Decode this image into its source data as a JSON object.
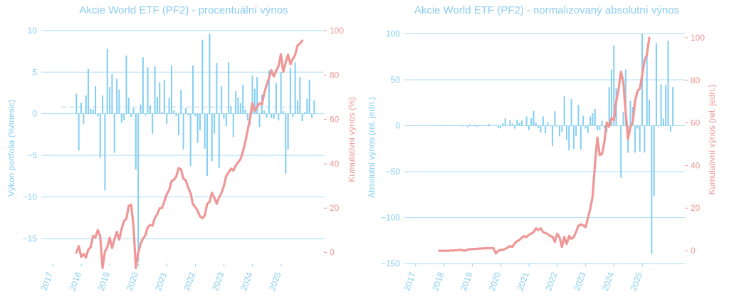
{
  "colors": {
    "bars": "#86cff2",
    "line": "#ef9797",
    "axis_left": "#86cff2",
    "axis_right": "#ef9797",
    "grid": "#aadcf5",
    "dashed": "#d8e9f2"
  },
  "chart_data": [
    {
      "type": "bar",
      "title": "Akcie World ETF (PF2) - procentuální výnos",
      "ylabel": "Výkon portfolia (%/mesic)",
      "ylabel2": "Kumulativní výnos (%)",
      "xlabels": [
        "2017",
        "2018",
        "2019",
        "2020",
        "2021",
        "2022",
        "2023",
        "2024",
        "2025"
      ],
      "yticks": [
        "10",
        "5",
        "0",
        "−5",
        "−10",
        "−15"
      ],
      "y2ticks": [
        "100",
        "80",
        "60",
        "40",
        "20",
        "0"
      ],
      "ylim": [
        -18,
        10.5
      ],
      "y2lim": [
        -5,
        102
      ],
      "xlim": [
        2016.6,
        2026.5
      ],
      "grid": true,
      "mean_line": 0.8,
      "series": [
        {
          "kind": "bar",
          "x_start": 2017.83,
          "x_step": 0.0833,
          "values": [
            2.4,
            -4.4,
            1.3,
            -1.2,
            2.2,
            5.4,
            0.6,
            0.5,
            3.3,
            -0.3,
            -5.3,
            2.2,
            -9.2,
            7.8,
            3.2,
            4.8,
            -4.7,
            4.2,
            2.9,
            -1.1,
            -0.8,
            7.0,
            1.9,
            -0.4,
            0.7,
            -6.7,
            -17.8,
            1.1,
            6.8,
            -0.2,
            5.6,
            1.0,
            -2.4,
            5.7,
            2.0,
            3.8,
            0.2,
            4.1,
            -1.2,
            1.9,
            5.8,
            0.4,
            -0.3,
            -2.6,
            2.9,
            -4.3,
            0.7,
            -0.2,
            -6.3,
            5.8,
            -0.3,
            -3.5,
            -2.0,
            8.9,
            -4.2,
            -7.5,
            9.6,
            -5.7,
            -2.4,
            6.1,
            -6.5,
            3.3,
            -0.6,
            -1.5,
            6.2,
            0.9,
            -2.8,
            2.7,
            2.0,
            1.3,
            3.5,
            0.5,
            -0.8,
            -1.4,
            4.6,
            3.0,
            4.4,
            -1.6,
            2.3,
            0.4,
            -0.5,
            5.2,
            -0.5,
            -0.6,
            3.7,
            -0.8,
            5.0,
            0.3,
            -7.2,
            -4.3,
            5.5,
            -0.4,
            6.2,
            1.6,
            4.4,
            -0.9,
            0.2,
            1.8,
            4.1,
            -0.5,
            1.6
          ]
        },
        {
          "kind": "line",
          "x_start": 2017.83,
          "x_step": 0.0833,
          "values": [
            0.0,
            2.8,
            -2.0,
            -0.7,
            -2.3,
            1.3,
            2.4,
            7.4,
            6.8,
            10.1,
            7.3,
            -7.0,
            0.4,
            2.3,
            6.7,
            2.0,
            5.9,
            9.3,
            5.8,
            10.7,
            14.1,
            15.2,
            21.0,
            21.6,
            12.0,
            -7.0,
            -0.2,
            4.0,
            6.2,
            7.7,
            11.4,
            12.4,
            12.1,
            15.6,
            17.3,
            19.9,
            20.1,
            23.1,
            26.3,
            28.1,
            32.2,
            32.8,
            34.3,
            38.1,
            37.4,
            33.3,
            32.5,
            29.3,
            26.7,
            21.8,
            20.5,
            18.7,
            16.2,
            15.5,
            16.7,
            21.9,
            22.8,
            26.9,
            24.6,
            22.0,
            24.8,
            26.9,
            29.9,
            34.5,
            36.1,
            37.8,
            37.0,
            39.2,
            40.7,
            42.1,
            45.4,
            49.8,
            55.0,
            60.4,
            67.4,
            63.8,
            65.9,
            67.2,
            66.8,
            72.0,
            75.6,
            78.7,
            82.2,
            79.4,
            81.9,
            84.2,
            89.4,
            81.4,
            85.7,
            89.2,
            84.9,
            87.3,
            89.1,
            93.4,
            94.2,
            95.6
          ]
        }
      ]
    },
    {
      "type": "bar",
      "title": "Akcie World ETF (PF2) - normalizovaný absolutní výnos",
      "ylabel": "Absolutní výnos (rel. jedn.)",
      "ylabel2": "Kumulativní výnos (rel. jedn.)",
      "xlabels": [
        "2017",
        "2018",
        "2019",
        "2020",
        "2021",
        "2022",
        "2023",
        "2024",
        "2025"
      ],
      "yticks": [
        "100",
        "50",
        "0",
        "−50",
        "−100",
        "−150"
      ],
      "y2ticks": [
        "100",
        "80",
        "60",
        "40",
        "20",
        "0"
      ],
      "ylim": [
        -150,
        105
      ],
      "y2lim": [
        -6,
        104
      ],
      "xlim": [
        2016.6,
        2026.5
      ],
      "grid": true,
      "series": [
        {
          "kind": "bar",
          "x_start": 2017.83,
          "x_step": 0.0833,
          "values": [
            0.2,
            -0.4,
            0.1,
            -0.1,
            0.2,
            0.6,
            0.1,
            0.1,
            0.4,
            0,
            -0.8,
            0.3,
            -1.6,
            1.2,
            0.6,
            0.9,
            -1.0,
            0.9,
            0.7,
            -0.3,
            -0.2,
            2.1,
            0.6,
            -0.1,
            0.2,
            -2.5,
            -2.9,
            2.6,
            8.3,
            -0.2,
            6.1,
            2.4,
            -3.2,
            6.5,
            2.8,
            5.4,
            0.4,
            9.9,
            -4.7,
            8.3,
            16.1,
            3.4,
            -2.7,
            -7.4,
            10.1,
            -8.3,
            3.3,
            -0.9,
            -22.2,
            15.7,
            -1.4,
            -11.6,
            -6.8,
            32.0,
            -15.7,
            -26.9,
            29.0,
            -25.1,
            -11.4,
            22.6,
            -26.0,
            10.8,
            -3.1,
            -8.0,
            10.0,
            13.6,
            18.4,
            -4.9,
            -4.9,
            5.3,
            -3.0,
            -6.8,
            42.0,
            61.1,
            87.5,
            40.8,
            0.5,
            -56.9,
            15.1,
            61.3,
            -29.5,
            27.0,
            20.4,
            -29.3,
            -3.1,
            -28.1,
            100,
            -29.1,
            78.1,
            28.5,
            -139.6,
            -76.8,
            90.0,
            -1.1,
            45.0,
            7.8,
            44.3,
            92.4,
            -6.4,
            42.1
          ]
        },
        {
          "kind": "line",
          "x_start": 2017.83,
          "x_step": 0.0833,
          "values": [
            0,
            0,
            0,
            0,
            0,
            0.2,
            0.1,
            0.3,
            0.3,
            0.5,
            0.2,
            0,
            0.6,
            0.7,
            0.8,
            0.8,
            0.9,
            1.0,
            1.1,
            1.1,
            1.2,
            1.2,
            1.3,
            1.2,
            -1.3,
            0.0,
            0.5,
            0.4,
            0.9,
            1.5,
            2.2,
            1.8,
            3.5,
            4.5,
            5.1,
            6.1,
            6.9,
            6.4,
            7.5,
            8.0,
            8.8,
            10.5,
            9.7,
            10.5,
            8.8,
            8.3,
            7.8,
            6.9,
            6.6,
            4.2,
            8.0,
            6.3,
            1.8,
            6.5,
            3.2,
            6.9,
            5.6,
            6.4,
            8.8,
            11.8,
            12.4,
            11.9,
            11.1,
            15.3,
            19.7,
            25.5,
            40.9,
            53.1,
            44.9,
            45.5,
            51.2,
            60.2,
            58.2,
            62.3,
            61.3,
            70.1,
            75.7,
            84.0,
            79.5,
            64.8,
            52.4,
            58.0,
            60.4,
            70.2,
            74.9,
            76.1,
            82.5,
            89.5,
            92.1,
            100.0
          ]
        }
      ]
    }
  ]
}
